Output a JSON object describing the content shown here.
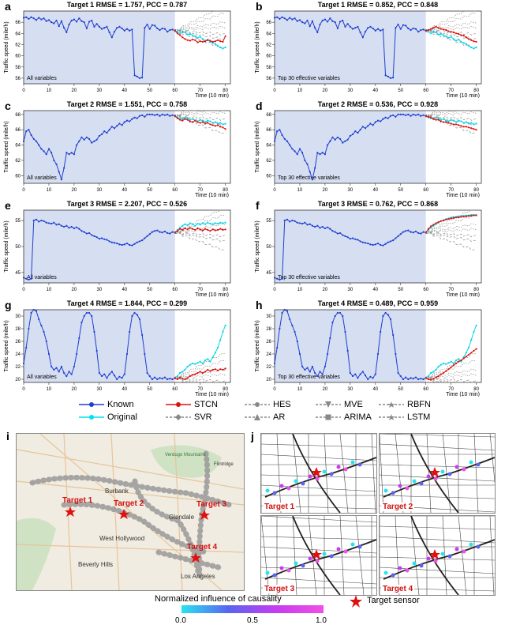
{
  "panels": [
    {
      "letter": "a",
      "title": "Target 1 RMSE = 1.757, PCC = 0.787",
      "note": "All variables",
      "ylim": [
        55,
        68
      ],
      "yticks": [
        56,
        58,
        60,
        62,
        64,
        66
      ],
      "known": [
        66.8,
        66.9,
        66.6,
        66.9,
        66.7,
        66.4,
        66.8,
        66.5,
        66.7,
        66.2,
        66.4,
        66.0,
        65.8,
        66.3,
        65.3,
        66.2,
        65.0,
        64.2,
        65.6,
        66.3,
        66.5,
        66.1,
        66.7,
        66.2,
        66.0,
        64.9,
        66.1,
        66.3,
        65.2,
        65.7,
        65.2,
        64.8,
        65.0,
        65.2,
        64.2,
        63.3,
        64.3,
        65.0,
        65.2,
        64.9,
        64.5,
        64.8,
        64.5,
        64.7,
        56.5,
        56.3,
        56.0,
        56.1,
        65.0,
        65.6,
        64.8,
        65.5,
        65.4,
        64.9,
        64.6,
        64.9,
        64.8,
        64.3,
        64.6,
        64.7,
        64.5
      ],
      "stcn": [
        64.5,
        64.0,
        63.7,
        63.3,
        63.0,
        62.8,
        62.7,
        62.9,
        62.8,
        62.4,
        62.6,
        62.5,
        62.6,
        62.8,
        62.7,
        62.5,
        62.6,
        62.8,
        62.6,
        62.5,
        63.5
      ],
      "orig": [
        64.5,
        64.3,
        64.0,
        64.4,
        64.2,
        63.8,
        63.9,
        63.7,
        63.5,
        63.2,
        63.4,
        63.0,
        62.7,
        62.9,
        62.5,
        62.3,
        62.1,
        61.8,
        61.5,
        61.3,
        61.5
      ]
    },
    {
      "letter": "b",
      "title": "Target 1 RMSE = 0.852, PCC = 0.848",
      "note": "Top 30 effective variables",
      "ylim": [
        55,
        68
      ],
      "yticks": [
        56,
        58,
        60,
        62,
        64,
        66
      ],
      "known": [
        66.8,
        66.9,
        66.6,
        66.9,
        66.7,
        66.4,
        66.8,
        66.5,
        66.7,
        66.2,
        66.4,
        66.0,
        65.8,
        66.3,
        65.3,
        66.2,
        65.0,
        64.2,
        65.6,
        66.3,
        66.5,
        66.1,
        66.7,
        66.2,
        66.0,
        64.9,
        66.1,
        66.3,
        65.2,
        65.7,
        65.2,
        64.8,
        65.0,
        65.2,
        64.2,
        63.3,
        64.3,
        65.0,
        65.2,
        64.9,
        64.5,
        64.8,
        64.5,
        64.7,
        56.5,
        56.3,
        56.0,
        56.1,
        65.0,
        65.6,
        64.8,
        65.5,
        65.4,
        64.9,
        64.6,
        64.9,
        64.8,
        64.3,
        64.6,
        64.7,
        64.5
      ],
      "stcn": [
        64.5,
        64.6,
        64.8,
        65.0,
        65.2,
        65.0,
        64.8,
        64.7,
        64.6,
        64.4,
        64.3,
        64.2,
        64.0,
        63.9,
        63.7,
        63.6,
        63.3,
        63.0,
        62.8,
        62.6,
        62.5
      ],
      "orig": [
        64.5,
        64.3,
        64.0,
        64.4,
        64.2,
        63.8,
        63.9,
        63.7,
        63.5,
        63.2,
        63.4,
        63.0,
        62.7,
        62.9,
        62.5,
        62.3,
        62.1,
        61.8,
        61.5,
        61.3,
        61.5
      ]
    },
    {
      "letter": "c",
      "title": "Target 2 RMSE = 1.551, PCC = 0.758",
      "note": "All variables",
      "ylim": [
        59,
        68.5
      ],
      "yticks": [
        60,
        62,
        64,
        66,
        68
      ],
      "known": [
        64.5,
        65.8,
        66.0,
        65.3,
        64.8,
        64.5,
        64.0,
        63.5,
        63.2,
        62.8,
        63.5,
        63.0,
        62.0,
        61.5,
        60.5,
        59.5,
        61.0,
        63.0,
        62.8,
        63.0,
        62.8,
        64.0,
        64.5,
        65.0,
        64.7,
        65.0,
        64.8,
        64.3,
        64.5,
        64.7,
        65.2,
        65.4,
        65.8,
        65.6,
        66.0,
        66.4,
        66.2,
        66.5,
        66.8,
        66.6,
        67.0,
        67.2,
        67.1,
        67.4,
        67.6,
        67.5,
        67.8,
        67.9,
        67.7,
        68.0,
        68.0,
        68.0,
        67.9,
        68.0,
        67.8,
        68.0,
        67.9,
        68.0,
        67.8,
        67.9,
        67.8
      ],
      "stcn": [
        67.8,
        67.5,
        67.3,
        67.2,
        67.4,
        67.3,
        67.1,
        67.0,
        67.2,
        67.0,
        66.9,
        67.0,
        66.8,
        66.9,
        66.7,
        66.6,
        66.5,
        66.6,
        66.4,
        66.3,
        66.1
      ],
      "orig": [
        67.8,
        67.6,
        67.5,
        67.4,
        67.6,
        67.5,
        67.3,
        67.4,
        67.2,
        67.1,
        67.3,
        67.2,
        67.0,
        67.2,
        67.1,
        66.9,
        67.0,
        66.8,
        66.9,
        66.7,
        66.8
      ]
    },
    {
      "letter": "d",
      "title": "Target 2 RMSE = 0.536, PCC = 0.928",
      "note": "Top 30 effective variables",
      "ylim": [
        59,
        68.5
      ],
      "yticks": [
        60,
        62,
        64,
        66,
        68
      ],
      "known": [
        64.5,
        65.8,
        66.0,
        65.3,
        64.8,
        64.5,
        64.0,
        63.5,
        63.2,
        62.8,
        63.5,
        63.0,
        62.0,
        61.5,
        60.5,
        59.5,
        61.0,
        63.0,
        62.8,
        63.0,
        62.8,
        64.0,
        64.5,
        65.0,
        64.7,
        65.0,
        64.8,
        64.3,
        64.5,
        64.7,
        65.2,
        65.4,
        65.8,
        65.6,
        66.0,
        66.4,
        66.2,
        66.5,
        66.8,
        66.6,
        67.0,
        67.2,
        67.1,
        67.4,
        67.6,
        67.5,
        67.8,
        67.9,
        67.7,
        68.0,
        68.0,
        68.0,
        67.9,
        68.0,
        67.8,
        68.0,
        67.9,
        68.0,
        67.8,
        67.9,
        67.8
      ],
      "stcn": [
        67.8,
        67.7,
        67.6,
        67.4,
        67.3,
        67.3,
        67.1,
        67.0,
        67.0,
        66.9,
        66.8,
        66.7,
        66.7,
        66.6,
        66.5,
        66.4,
        66.4,
        66.3,
        66.2,
        66.1,
        66.0
      ],
      "orig": [
        67.8,
        67.6,
        67.5,
        67.4,
        67.6,
        67.5,
        67.3,
        67.4,
        67.2,
        67.1,
        67.3,
        67.2,
        67.0,
        67.2,
        67.1,
        66.9,
        67.0,
        66.8,
        66.9,
        66.7,
        66.8
      ]
    },
    {
      "letter": "e",
      "title": "Target 3 RMSE = 2.207, PCC = 0.526",
      "note": "All variables",
      "ylim": [
        43,
        57
      ],
      "yticks": [
        45,
        50,
        55
      ],
      "known": [
        44.0,
        43.8,
        43.6,
        43.8,
        55.0,
        55.2,
        54.8,
        55.0,
        54.9,
        54.6,
        54.5,
        54.4,
        54.6,
        54.2,
        54.3,
        54.0,
        53.8,
        54.0,
        53.6,
        53.8,
        53.5,
        53.7,
        53.4,
        53.0,
        52.8,
        52.5,
        52.6,
        52.2,
        52.0,
        51.8,
        51.5,
        51.6,
        51.4,
        51.3,
        51.0,
        50.8,
        50.7,
        50.6,
        50.4,
        50.3,
        50.4,
        50.6,
        50.3,
        50.2,
        50.5,
        50.8,
        51.0,
        51.2,
        51.6,
        52.0,
        52.4,
        52.8,
        53.0,
        53.1,
        52.8,
        52.7,
        52.9,
        52.6,
        52.5,
        52.8,
        52.7
      ],
      "stcn": [
        52.7,
        53.0,
        53.4,
        53.2,
        53.5,
        53.3,
        53.6,
        53.4,
        53.2,
        53.5,
        53.3,
        53.1,
        53.4,
        53.2,
        53.0,
        53.3,
        53.1,
        53.2,
        53.4,
        53.2,
        53.3
      ],
      "orig": [
        52.7,
        53.2,
        53.6,
        54.0,
        54.3,
        54.1,
        54.5,
        54.3,
        54.0,
        54.4,
        54.2,
        54.5,
        54.3,
        54.6,
        54.4,
        54.3,
        54.5,
        54.4,
        54.6,
        54.5,
        54.6
      ]
    },
    {
      "letter": "f",
      "title": "Target 3 RMSE = 0.762, PCC = 0.868",
      "note": "Top 30 effective variables",
      "ylim": [
        43,
        57
      ],
      "yticks": [
        45,
        50,
        55
      ],
      "known": [
        44.0,
        43.8,
        43.6,
        43.8,
        55.0,
        55.2,
        54.8,
        55.0,
        54.9,
        54.6,
        54.5,
        54.4,
        54.6,
        54.2,
        54.3,
        54.0,
        53.8,
        54.0,
        53.6,
        53.8,
        53.5,
        53.7,
        53.4,
        53.0,
        52.8,
        52.5,
        52.6,
        52.2,
        52.0,
        51.8,
        51.5,
        51.6,
        51.4,
        51.3,
        51.0,
        50.8,
        50.7,
        50.6,
        50.4,
        50.3,
        50.4,
        50.6,
        50.3,
        50.2,
        50.5,
        50.8,
        51.0,
        51.2,
        51.6,
        52.0,
        52.4,
        52.8,
        53.0,
        53.1,
        52.8,
        52.7,
        52.9,
        52.6,
        52.5,
        52.8,
        52.7
      ],
      "stcn": [
        52.7,
        53.4,
        53.9,
        54.2,
        54.5,
        54.7,
        54.9,
        55.0,
        55.2,
        55.3,
        55.4,
        55.5,
        55.6,
        55.6,
        55.7,
        55.8,
        55.8,
        55.9,
        55.9,
        56.0,
        56.0
      ],
      "orig": [
        52.7,
        53.2,
        53.6,
        54.0,
        54.3,
        54.6,
        54.9,
        55.1,
        55.3,
        55.4,
        55.6,
        55.7,
        55.7,
        55.8,
        55.9,
        55.9,
        56.0,
        56.0,
        56.1,
        56.1,
        56.1
      ]
    },
    {
      "letter": "g",
      "title": "Target 4 RMSE = 1.844, PCC = 0.299",
      "note": "All variables",
      "ylim": [
        19.5,
        31
      ],
      "yticks": [
        20,
        22,
        24,
        26,
        28,
        30
      ],
      "known": [
        22.5,
        25.0,
        28.0,
        30.5,
        31.0,
        30.8,
        29.5,
        28.5,
        27.5,
        26.0,
        24.0,
        22.0,
        21.5,
        21.8,
        21.2,
        22.0,
        21.0,
        20.5,
        21.2,
        20.8,
        22.0,
        24.0,
        26.5,
        29.0,
        30.0,
        30.5,
        30.5,
        30.0,
        27.5,
        24.5,
        21.0,
        20.5,
        20.8,
        20.2,
        20.8,
        21.2,
        20.6,
        20.0,
        20.4,
        20.2,
        20.8,
        24.0,
        27.5,
        30.0,
        30.5,
        30.2,
        29.5,
        27.0,
        24.0,
        21.0,
        20.5,
        20.0,
        20.3,
        20.0,
        20.2,
        20.1,
        20.3,
        20.0,
        20.1,
        20.0,
        20.2
      ],
      "stcn": [
        20.2,
        20.0,
        20.3,
        20.1,
        20.0,
        20.2,
        20.5,
        20.7,
        20.8,
        21.0,
        21.2,
        21.0,
        21.2,
        21.5,
        21.3,
        21.5,
        21.6,
        21.4,
        21.6,
        21.5,
        21.7
      ],
      "orig": [
        20.2,
        20.5,
        21.0,
        21.2,
        21.5,
        22.0,
        22.3,
        22.5,
        22.4,
        22.6,
        22.8,
        22.5,
        23.0,
        23.2,
        22.8,
        23.5,
        24.2,
        25.0,
        26.2,
        27.5,
        28.5
      ]
    },
    {
      "letter": "h",
      "title": "Target 4 RMSE = 0.489, PCC = 0.959",
      "note": "Top 30 effective variables",
      "ylim": [
        19.5,
        31
      ],
      "yticks": [
        20,
        22,
        24,
        26,
        28,
        30
      ],
      "known": [
        22.5,
        25.0,
        28.0,
        30.5,
        31.0,
        30.8,
        29.5,
        28.5,
        27.5,
        26.0,
        24.0,
        22.0,
        21.5,
        21.8,
        21.2,
        22.0,
        21.0,
        20.5,
        21.2,
        20.8,
        22.0,
        24.0,
        26.5,
        29.0,
        30.0,
        30.5,
        30.5,
        30.0,
        27.5,
        24.5,
        21.0,
        20.5,
        20.8,
        20.2,
        20.8,
        21.2,
        20.6,
        20.0,
        20.4,
        20.2,
        20.8,
        24.0,
        27.5,
        30.0,
        30.5,
        30.2,
        29.5,
        27.0,
        24.0,
        21.0,
        20.5,
        20.0,
        20.3,
        20.0,
        20.2,
        20.1,
        20.3,
        20.0,
        20.1,
        20.0,
        20.2
      ],
      "stcn": [
        20.2,
        20.0,
        19.9,
        20.1,
        20.3,
        20.5,
        20.8,
        21.0,
        21.3,
        21.6,
        21.9,
        22.2,
        22.5,
        22.8,
        23.0,
        23.3,
        23.6,
        23.9,
        24.2,
        24.5,
        24.8
      ],
      "orig": [
        20.2,
        20.5,
        21.0,
        21.2,
        21.5,
        22.0,
        22.3,
        22.5,
        22.4,
        22.6,
        22.8,
        22.5,
        23.0,
        23.2,
        22.8,
        23.5,
        24.2,
        25.0,
        26.2,
        27.5,
        28.5
      ]
    }
  ],
  "axes": {
    "ylabel": "Traffic speed (mile/h)",
    "xlabel": "Time (10 min)",
    "xticks": [
      0,
      10,
      20,
      30,
      40,
      50,
      60,
      70,
      80
    ],
    "xlim": [
      0,
      82
    ],
    "split": 60
  },
  "legend": [
    {
      "label": "Known",
      "color": "#1f3fd0",
      "marker": "dot"
    },
    {
      "label": "Original",
      "color": "#00e0ee",
      "marker": "dot"
    },
    {
      "label": "STCN",
      "color": "#e01010",
      "marker": "dot"
    },
    {
      "label": "SVR",
      "color": "#888888",
      "marker": "diamond"
    },
    {
      "label": "HES",
      "color": "#888888",
      "marker": "circle"
    },
    {
      "label": "AR",
      "color": "#888888",
      "marker": "triangle"
    },
    {
      "label": "MVE",
      "color": "#888888",
      "marker": "tri-down"
    },
    {
      "label": "ARIMA",
      "color": "#888888",
      "marker": "square"
    },
    {
      "label": "RBFN",
      "color": "#888888",
      "marker": "x"
    },
    {
      "label": "LSTM",
      "color": "#888888",
      "marker": "star"
    }
  ],
  "map_i": {
    "letter": "i",
    "places": [
      "Burbank",
      "Glendale",
      "West Hollywood",
      "Beverly Hills",
      "Los Angeles",
      "Verdugo Mountains",
      "Flintridge"
    ],
    "targets": [
      "Target 1",
      "Target 2",
      "Target 3",
      "Target 4"
    ]
  },
  "map_j": {
    "letter": "j",
    "targets": [
      "Target 1",
      "Target 2",
      "Target 3",
      "Target 4"
    ]
  },
  "colorbar": {
    "label": "Normalized influence of causality",
    "ticks": [
      "0.0",
      "0.5",
      "1.0"
    ],
    "target_label": "Target sensor"
  },
  "chart_data": [
    {
      "type": "line",
      "title": "Target 1 RMSE = 1.757, PCC = 0.787",
      "xlabel": "Time (10 min)",
      "ylabel": "Traffic speed (mile/h)"
    },
    {
      "type": "line",
      "title": "Target 1 RMSE = 0.852, PCC = 0.848",
      "xlabel": "Time (10 min)",
      "ylabel": "Traffic speed (mile/h)"
    },
    {
      "type": "line",
      "title": "Target 2 RMSE = 1.551, PCC = 0.758",
      "xlabel": "Time (10 min)",
      "ylabel": "Traffic speed (mile/h)"
    },
    {
      "type": "line",
      "title": "Target 2 RMSE = 0.536, PCC = 0.928",
      "xlabel": "Time (10 min)",
      "ylabel": "Traffic speed (mile/h)"
    },
    {
      "type": "line",
      "title": "Target 3 RMSE = 2.207, PCC = 0.526",
      "xlabel": "Time (10 min)",
      "ylabel": "Traffic speed (mile/h)"
    },
    {
      "type": "line",
      "title": "Target 3 RMSE = 0.762, PCC = 0.868",
      "xlabel": "Time (10 min)",
      "ylabel": "Traffic speed (mile/h)"
    },
    {
      "type": "line",
      "title": "Target 4 RMSE = 1.844, PCC = 0.299",
      "xlabel": "Time (10 min)",
      "ylabel": "Traffic speed (mile/h)"
    },
    {
      "type": "line",
      "title": "Target 4 RMSE = 0.489, PCC = 0.959",
      "xlabel": "Time (10 min)",
      "ylabel": "Traffic speed (mile/h)"
    }
  ]
}
